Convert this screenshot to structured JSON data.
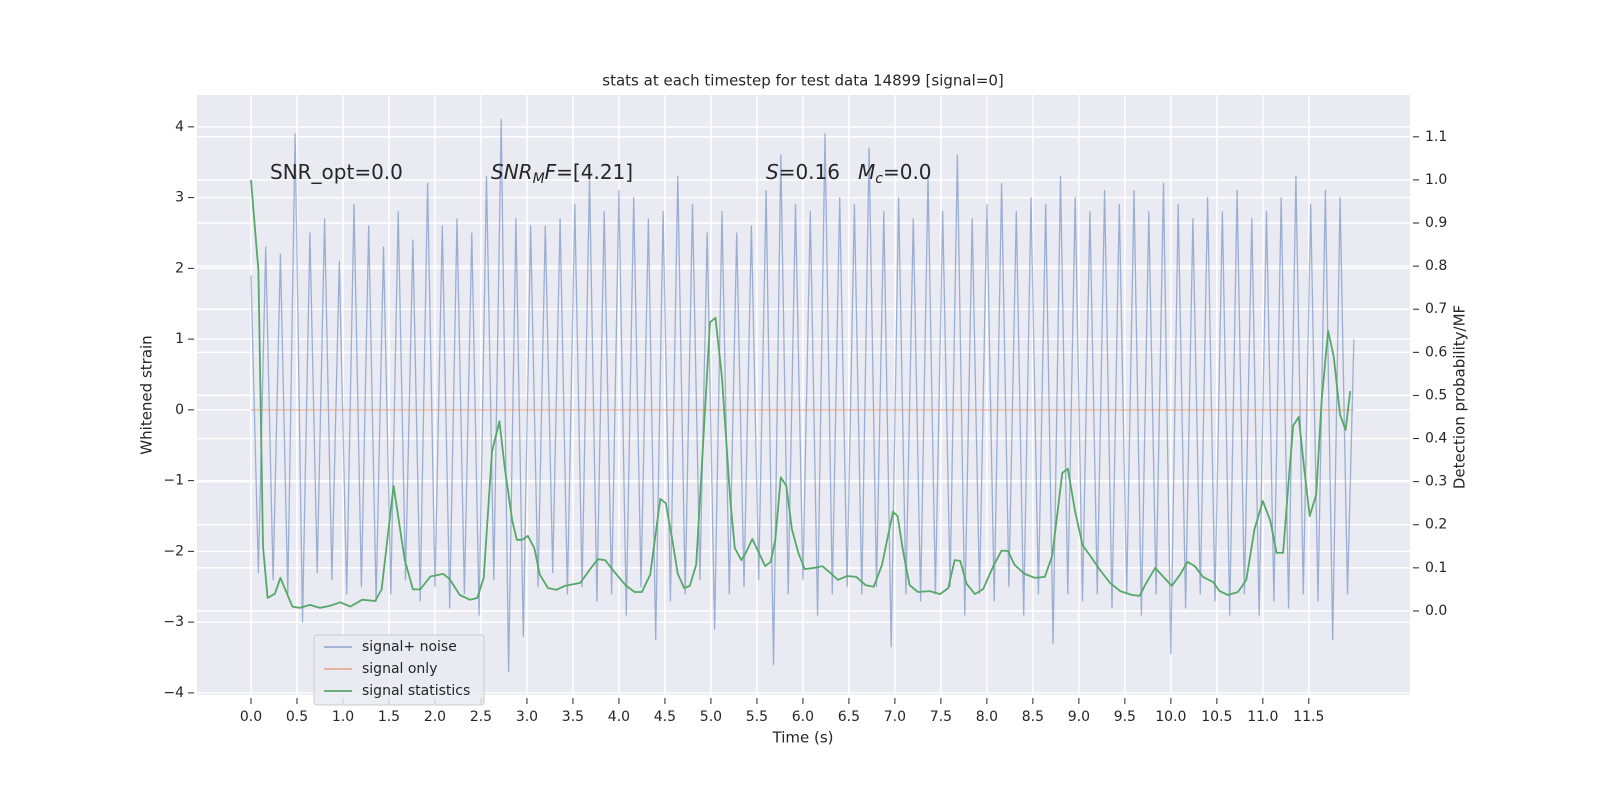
{
  "chart_data": {
    "type": "line",
    "title": "stats at each timestep for test data 14899 [signal=0]",
    "xlabel": "Time (s)",
    "ylabel": "Whitened strain",
    "y2label": "Detection probability/MF",
    "xlim": [
      -0.587,
      12.6
    ],
    "ylim": [
      -4.03,
      4.45
    ],
    "y2lim": [
      -0.195,
      1.197
    ],
    "xticks": [
      {
        "value": 0,
        "label": "0.0"
      },
      0.5,
      {
        "value": 1,
        "label": "1.0"
      },
      1.5,
      {
        "value": 2,
        "label": "2.0"
      },
      2.5,
      {
        "value": 3,
        "label": "3.0"
      },
      3.5,
      {
        "value": 4,
        "label": "4.0"
      },
      4.5,
      {
        "value": 5,
        "label": "5.0"
      },
      5.5,
      {
        "value": 6,
        "label": "6.0"
      },
      6.5,
      {
        "value": 7,
        "label": "7.0"
      },
      7.5,
      {
        "value": 8,
        "label": "8.0"
      },
      8.5,
      {
        "value": 9,
        "label": "9.0"
      },
      9.5,
      {
        "value": 10,
        "label": "10.0"
      },
      10.5,
      {
        "value": 11,
        "label": "11.0"
      },
      11.5
    ],
    "yticks": [
      {
        "value": -4,
        "label": "−4"
      },
      {
        "value": -3,
        "label": "−3"
      },
      {
        "value": -2,
        "label": "−2"
      },
      {
        "value": -1,
        "label": "−1"
      },
      0,
      1,
      2,
      3,
      4
    ],
    "y2ticks": [
      {
        "value": 0,
        "label": "0.0"
      },
      0.1,
      0.2,
      0.3,
      0.4,
      0.5,
      0.6,
      0.7,
      0.8,
      0.9,
      {
        "value": 1,
        "label": "1.0"
      },
      1.1
    ],
    "grid": true,
    "legend": "lower left",
    "annotations": [
      [
        {
          "text": "SNR_opt=0.0"
        }
      ],
      [
        {
          "text": "SNR",
          "italic": true
        },
        {
          "text": "M",
          "italic": true,
          "sub": true
        },
        {
          "text": "F",
          "italic": true
        },
        {
          "text": "=[4.21]"
        }
      ],
      [
        {
          "text": "S",
          "italic": true
        },
        {
          "text": "=0.16"
        }
      ],
      [
        {
          "text": "M",
          "italic": true
        },
        {
          "text": "c",
          "italic": true,
          "sub": true
        },
        {
          "text": "=0.0"
        }
      ]
    ],
    "series": [
      {
        "name": "signal+ noise",
        "color": "#4c72b0",
        "alpha": 0.5,
        "axis": "y",
        "x": [
          0,
          0.08,
          0.16,
          0.24,
          0.32,
          0.4,
          0.48,
          0.56,
          0.64,
          0.72,
          0.8,
          0.88,
          0.96,
          1.04,
          1.12,
          1.2,
          1.28,
          1.36,
          1.44,
          1.52,
          1.6,
          1.68,
          1.76,
          1.84,
          1.92,
          2,
          2.08,
          2.16,
          2.24,
          2.32,
          2.4,
          2.48,
          2.56,
          2.64,
          2.72,
          2.8,
          2.88,
          2.96,
          3.04,
          3.12,
          3.2,
          3.28,
          3.36,
          3.44,
          3.52,
          3.6,
          3.68,
          3.76,
          3.84,
          3.92,
          4,
          4.08,
          4.16,
          4.24,
          4.32,
          4.4,
          4.48,
          4.56,
          4.64,
          4.72,
          4.8,
          4.88,
          4.96,
          5.04,
          5.12,
          5.2,
          5.28,
          5.36,
          5.44,
          5.52,
          5.6,
          5.68,
          5.76,
          5.84,
          5.92,
          6,
          6.08,
          6.16,
          6.24,
          6.32,
          6.4,
          6.48,
          6.56,
          6.64,
          6.72,
          6.8,
          6.88,
          6.96,
          7.04,
          7.12,
          7.2,
          7.28,
          7.36,
          7.44,
          7.52,
          7.6,
          7.68,
          7.76,
          7.84,
          7.92,
          8,
          8.08,
          8.16,
          8.24,
          8.32,
          8.4,
          8.48,
          8.56,
          8.64,
          8.72,
          8.8,
          8.88,
          8.96,
          9.04,
          9.12,
          9.2,
          9.28,
          9.36,
          9.44,
          9.52,
          9.6,
          9.68,
          9.76,
          9.84,
          9.92,
          10,
          10.08,
          10.16,
          10.24,
          10.32,
          10.4,
          10.48,
          10.56,
          10.64,
          10.72,
          10.8,
          10.88,
          10.96,
          11.04,
          11.12,
          11.2,
          11.28,
          11.36,
          11.44,
          11.52,
          11.6,
          11.68,
          11.76,
          11.84,
          11.92,
          11.99
        ],
        "values": [
          1.9,
          -2.3,
          2.3,
          -2.4,
          2.2,
          -2.6,
          3.9,
          -3.0,
          2.5,
          -2.3,
          2.7,
          -2.4,
          2.1,
          -2.6,
          2.9,
          -2.5,
          2.6,
          -2.7,
          2.3,
          -2.6,
          2.8,
          -2.4,
          2.4,
          -2.7,
          3.2,
          -2.5,
          2.6,
          -2.8,
          2.7,
          -2.6,
          2.5,
          -2.9,
          3.3,
          -2.4,
          4.1,
          -3.7,
          2.7,
          -3.2,
          2.6,
          -2.5,
          2.6,
          -2.3,
          2.7,
          -2.6,
          2.9,
          -2.5,
          3.3,
          -2.7,
          2.8,
          -2.6,
          3.1,
          -2.9,
          3.0,
          -2.5,
          2.7,
          -3.25,
          2.8,
          -2.7,
          3.3,
          -2.6,
          2.9,
          -2.4,
          2.5,
          -3.1,
          2.8,
          -2.6,
          2.5,
          -2.5,
          2.6,
          -2.4,
          3.1,
          -3.6,
          3.6,
          -2.6,
          2.9,
          -2.4,
          2.8,
          -2.9,
          3.9,
          -2.6,
          3.0,
          -2.5,
          2.9,
          -2.6,
          3.7,
          -2.5,
          2.8,
          -3.35,
          3.0,
          -2.6,
          2.7,
          -2.7,
          3.3,
          -2.6,
          2.8,
          -2.5,
          3.6,
          -2.9,
          2.7,
          -2.6,
          2.9,
          -2.7,
          3.2,
          -2.5,
          2.8,
          -2.9,
          3.0,
          -2.6,
          2.9,
          -3.3,
          3.3,
          -2.6,
          3.0,
          -2.7,
          2.8,
          -2.6,
          3.1,
          -2.8,
          2.9,
          -2.6,
          3.1,
          -2.9,
          2.8,
          -2.6,
          3.2,
          -3.45,
          2.9,
          -2.8,
          2.7,
          -2.6,
          3.0,
          -2.7,
          2.8,
          -2.9,
          3.1,
          -2.6,
          2.7,
          -2.9,
          2.8,
          -2.7,
          3.0,
          -2.8,
          3.3,
          -2.6,
          2.9,
          -2.7,
          3.1,
          -3.25,
          3.0,
          -2.6,
          1.0
        ]
      },
      {
        "name": "signal only",
        "color": "#dd8452",
        "alpha": 0.6,
        "axis": "y",
        "x": [
          0,
          11.99
        ],
        "values": [
          0,
          0
        ]
      },
      {
        "name": "signal statistics",
        "color": "#55a868",
        "alpha": 1,
        "axis": "y2",
        "x": [
          0,
          0.08,
          0.13,
          0.18,
          0.26,
          0.32,
          0.45,
          0.53,
          0.64,
          0.75,
          0.86,
          0.97,
          1.08,
          1.21,
          1.35,
          1.42,
          1.55,
          1.67,
          1.76,
          1.84,
          1.95,
          2.09,
          2.16,
          2.27,
          2.38,
          2.46,
          2.53,
          2.62,
          2.7,
          2.76,
          2.84,
          2.89,
          2.95,
          3.01,
          3.08,
          3.14,
          3.23,
          3.32,
          3.41,
          3.58,
          3.68,
          3.77,
          3.85,
          3.96,
          4.07,
          4.17,
          4.25,
          4.34,
          4.45,
          4.51,
          4.58,
          4.64,
          4.71,
          4.77,
          4.84,
          4.9,
          4.99,
          5.05,
          5.12,
          5.21,
          5.26,
          5.33,
          5.38,
          5.45,
          5.51,
          5.59,
          5.65,
          5.7,
          5.76,
          5.82,
          5.88,
          5.95,
          6.02,
          6.13,
          6.21,
          6.29,
          6.38,
          6.48,
          6.58,
          6.68,
          6.77,
          6.86,
          6.98,
          7.03,
          7.09,
          7.16,
          7.25,
          7.38,
          7.49,
          7.58,
          7.65,
          7.71,
          7.78,
          7.87,
          7.96,
          8.07,
          8.16,
          8.23,
          8.3,
          8.41,
          8.52,
          8.63,
          8.71,
          8.82,
          8.88,
          8.96,
          9.04,
          9.14,
          9.23,
          9.34,
          9.45,
          9.58,
          9.66,
          9.72,
          9.83,
          9.91,
          10.01,
          10.1,
          10.18,
          10.26,
          10.35,
          10.46,
          10.53,
          10.62,
          10.73,
          10.82,
          10.91,
          11,
          11.08,
          11.15,
          11.22,
          11.28,
          11.33,
          11.39,
          11.45,
          11.51,
          11.58,
          11.64,
          11.71,
          11.77,
          11.84,
          11.9,
          11.95
        ],
        "values": [
          1.0,
          0.79,
          0.15,
          0.03,
          0.04,
          0.077,
          0.01,
          0.007,
          0.014,
          0.007,
          0.012,
          0.02,
          0.01,
          0.026,
          0.023,
          0.05,
          0.29,
          0.12,
          0.05,
          0.05,
          0.08,
          0.086,
          0.074,
          0.037,
          0.026,
          0.03,
          0.077,
          0.37,
          0.44,
          0.33,
          0.21,
          0.165,
          0.165,
          0.174,
          0.146,
          0.084,
          0.053,
          0.049,
          0.058,
          0.065,
          0.095,
          0.12,
          0.118,
          0.088,
          0.06,
          0.044,
          0.044,
          0.084,
          0.26,
          0.25,
          0.165,
          0.086,
          0.053,
          0.058,
          0.107,
          0.33,
          0.67,
          0.68,
          0.54,
          0.26,
          0.146,
          0.118,
          0.135,
          0.167,
          0.14,
          0.104,
          0.114,
          0.165,
          0.31,
          0.29,
          0.19,
          0.135,
          0.097,
          0.1,
          0.104,
          0.09,
          0.072,
          0.081,
          0.079,
          0.06,
          0.056,
          0.107,
          0.23,
          0.22,
          0.137,
          0.06,
          0.044,
          0.046,
          0.039,
          0.053,
          0.118,
          0.116,
          0.063,
          0.039,
          0.051,
          0.104,
          0.14,
          0.139,
          0.107,
          0.086,
          0.077,
          0.079,
          0.128,
          0.32,
          0.33,
          0.23,
          0.153,
          0.123,
          0.095,
          0.065,
          0.046,
          0.037,
          0.035,
          0.06,
          0.1,
          0.081,
          0.058,
          0.084,
          0.114,
          0.104,
          0.079,
          0.067,
          0.046,
          0.037,
          0.044,
          0.072,
          0.19,
          0.255,
          0.21,
          0.135,
          0.135,
          0.3,
          0.43,
          0.45,
          0.33,
          0.22,
          0.27,
          0.49,
          0.65,
          0.59,
          0.455,
          0.42,
          0.51
        ]
      }
    ]
  }
}
